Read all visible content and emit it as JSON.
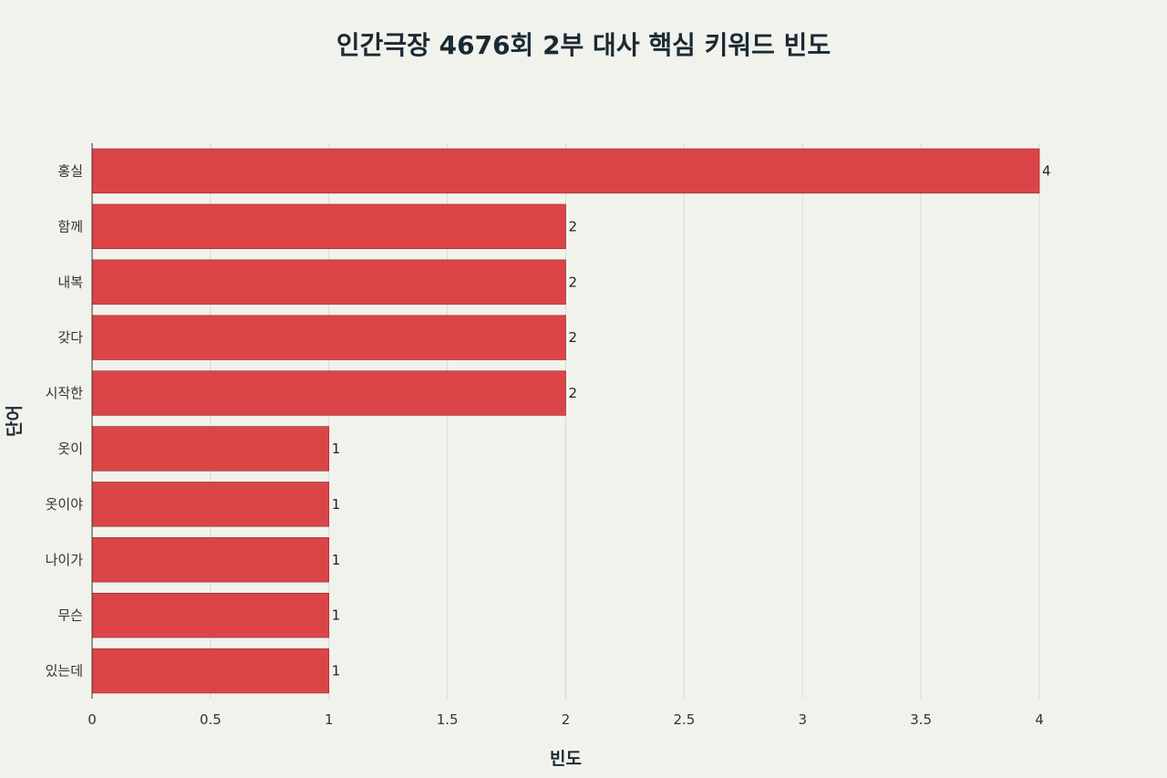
{
  "chart_data": {
    "type": "bar",
    "orientation": "horizontal",
    "title": "인간극장 4676회 2부 대사 핵심 키워드 빈도",
    "xlabel": "빈도",
    "ylabel": "단어",
    "categories": [
      "홍실",
      "함께",
      "내복",
      "갖다",
      "시작한",
      "옷이",
      "옷이야",
      "나이가",
      "무슨",
      "있는데"
    ],
    "values": [
      4,
      2,
      2,
      2,
      2,
      1,
      1,
      1,
      1,
      1
    ],
    "value_labels": [
      "4",
      "2",
      "2",
      "2",
      "2",
      "1",
      "1",
      "1",
      "1",
      "1"
    ],
    "xlim": [
      0,
      4
    ],
    "xticks": [
      0,
      0.5,
      1,
      1.5,
      2,
      2.5,
      3,
      3.5,
      4
    ],
    "xtick_labels": [
      "0",
      "0.5",
      "1",
      "1.5",
      "2",
      "2.5",
      "3",
      "3.5",
      "4"
    ],
    "grid": true,
    "colors": {
      "bar": "#dc4548",
      "bar_edge": "#8a2a2c",
      "grid": "#d9d9d4",
      "axis": "#333333",
      "background": "#f2f2ed"
    }
  }
}
